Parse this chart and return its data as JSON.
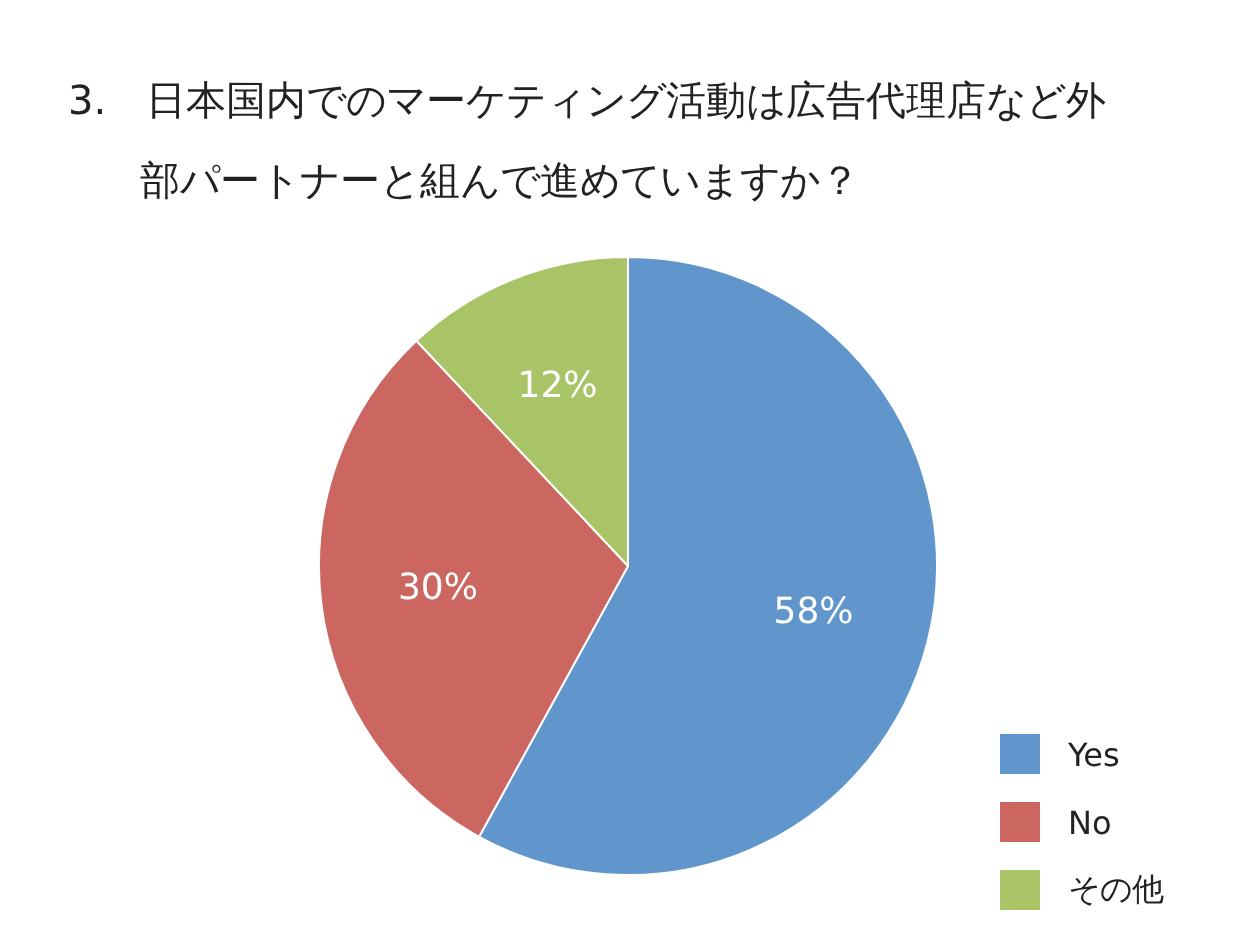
{
  "chart_data": {
    "type": "pie",
    "title": "3.　日本国内でのマーケティング活動は広告代理店など外部パートナーと組んで進めていますか？",
    "categories": [
      "Yes",
      "No",
      "その他"
    ],
    "values": [
      58,
      30,
      12
    ],
    "colors": [
      "#6096cb",
      "#cc6660",
      "#a9c467"
    ],
    "value_labels": [
      "58%",
      "30%",
      "12%"
    ],
    "legend": "bottom right"
  }
}
